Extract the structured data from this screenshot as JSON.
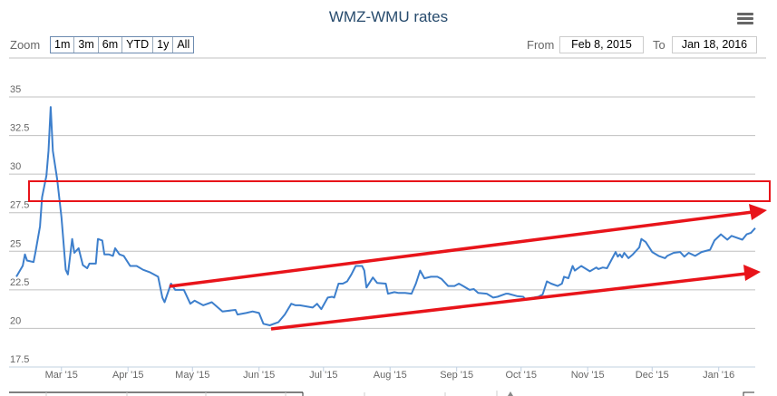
{
  "header": {
    "title": "WMZ-WMU rates",
    "menu_icon": "hamburger-menu-icon"
  },
  "range_selector": {
    "zoom_label": "Zoom",
    "buttons": [
      "1m",
      "3m",
      "6m",
      "YTD",
      "1y",
      "All"
    ],
    "from_label": "From",
    "from_value": "Feb 8, 2015",
    "to_label": "To",
    "to_value": "Jan 18, 2016"
  },
  "colors": {
    "line": "#3d7fcc",
    "annotation": "#e8141a",
    "grid": "#c0c0c0"
  },
  "chart_data": {
    "type": "line",
    "title": "WMZ-WMU rates",
    "start_date": "Feb 8, 2015",
    "x_ticks": [
      {
        "label": "Mar '15",
        "day": 21
      },
      {
        "label": "Apr '15",
        "day": 52
      },
      {
        "label": "May '15",
        "day": 82
      },
      {
        "label": "Jun '15",
        "day": 113
      },
      {
        "label": "Jul '15",
        "day": 143
      },
      {
        "label": "Aug '15",
        "day": 174
      },
      {
        "label": "Sep '15",
        "day": 205
      },
      {
        "label": "Oct '15",
        "day": 235
      },
      {
        "label": "Nov '15",
        "day": 266
      },
      {
        "label": "Dec '15",
        "day": 296
      },
      {
        "label": "Jan '16",
        "day": 327
      }
    ],
    "y_ticks": [
      "17.5",
      "20",
      "22.5",
      "25",
      "27.5",
      "30",
      "32.5",
      "35"
    ],
    "ylim": [
      17.5,
      35
    ],
    "xlim": [
      0,
      344
    ],
    "grid": true,
    "series": [
      {
        "name": "WMZ-WMU",
        "points": [
          [
            0,
            23.35
          ],
          [
            3,
            24.06
          ],
          [
            4,
            24.8
          ],
          [
            5,
            24.4
          ],
          [
            8,
            24.3
          ],
          [
            9,
            25.0
          ],
          [
            11,
            26.6
          ],
          [
            12,
            28.5
          ],
          [
            14,
            29.9
          ],
          [
            15,
            31.5
          ],
          [
            16,
            34.35
          ],
          [
            17,
            31.5
          ],
          [
            19,
            29.7
          ],
          [
            21,
            27.2
          ],
          [
            23,
            23.8
          ],
          [
            24,
            23.5
          ],
          [
            26,
            25.8
          ],
          [
            27,
            24.9
          ],
          [
            29,
            25.2
          ],
          [
            31,
            24.1
          ],
          [
            33,
            23.9
          ],
          [
            34,
            24.2
          ],
          [
            37,
            24.2
          ],
          [
            38,
            25.8
          ],
          [
            40,
            25.7
          ],
          [
            41,
            24.8
          ],
          [
            43,
            24.8
          ],
          [
            45,
            24.7
          ],
          [
            46,
            25.2
          ],
          [
            48,
            24.8
          ],
          [
            50,
            24.7
          ],
          [
            53,
            24.05
          ],
          [
            56,
            24.05
          ],
          [
            59,
            23.8
          ],
          [
            62,
            23.65
          ],
          [
            64,
            23.5
          ],
          [
            66,
            23.35
          ],
          [
            68,
            22.0
          ],
          [
            69,
            21.7
          ],
          [
            72,
            22.9
          ],
          [
            74,
            22.5
          ],
          [
            78,
            22.5
          ],
          [
            81,
            21.6
          ],
          [
            83,
            21.8
          ],
          [
            87,
            21.5
          ],
          [
            91,
            21.7
          ],
          [
            96,
            21.1
          ],
          [
            102,
            21.2
          ],
          [
            103,
            20.9
          ],
          [
            107,
            21.0
          ],
          [
            110,
            21.1
          ],
          [
            113,
            21.0
          ],
          [
            115,
            20.3
          ],
          [
            118,
            20.2
          ],
          [
            122,
            20.4
          ],
          [
            125,
            20.9
          ],
          [
            128,
            21.6
          ],
          [
            130,
            21.5
          ],
          [
            132,
            21.5
          ],
          [
            138,
            21.35
          ],
          [
            140,
            21.6
          ],
          [
            142,
            21.25
          ],
          [
            145,
            22.0
          ],
          [
            147,
            22.05
          ],
          [
            148,
            22.0
          ],
          [
            150,
            22.9
          ],
          [
            152,
            22.9
          ],
          [
            154,
            23.05
          ],
          [
            156,
            23.5
          ],
          [
            158,
            24.05
          ],
          [
            161,
            24.05
          ],
          [
            162,
            23.75
          ],
          [
            163,
            22.65
          ],
          [
            166,
            23.3
          ],
          [
            168,
            22.95
          ],
          [
            172,
            22.9
          ],
          [
            173,
            22.25
          ],
          [
            176,
            22.35
          ],
          [
            178,
            22.3
          ],
          [
            181,
            22.3
          ],
          [
            184,
            22.25
          ],
          [
            186,
            22.9
          ],
          [
            188,
            23.75
          ],
          [
            190,
            23.25
          ],
          [
            193,
            23.35
          ],
          [
            196,
            23.35
          ],
          [
            198,
            23.2
          ],
          [
            201,
            22.75
          ],
          [
            204,
            22.75
          ],
          [
            206,
            22.9
          ],
          [
            208,
            22.75
          ],
          [
            211,
            22.5
          ],
          [
            213,
            22.55
          ],
          [
            215,
            22.3
          ],
          [
            219,
            22.25
          ],
          [
            222,
            22.0
          ],
          [
            224,
            22.05
          ],
          [
            228,
            22.25
          ],
          [
            229,
            22.25
          ],
          [
            233,
            22.1
          ],
          [
            236,
            22.05
          ],
          [
            237,
            21.9
          ],
          [
            243,
            22.05
          ],
          [
            245,
            22.2
          ],
          [
            247,
            23.05
          ],
          [
            249,
            22.9
          ],
          [
            252,
            22.75
          ],
          [
            254,
            22.9
          ],
          [
            255,
            23.35
          ],
          [
            257,
            23.25
          ],
          [
            259,
            24.05
          ],
          [
            260,
            23.75
          ],
          [
            263,
            24.05
          ],
          [
            267,
            23.7
          ],
          [
            270,
            23.95
          ],
          [
            271,
            23.85
          ],
          [
            273,
            23.95
          ],
          [
            275,
            23.9
          ],
          [
            279,
            24.95
          ],
          [
            280,
            24.65
          ],
          [
            281,
            24.8
          ],
          [
            282,
            24.6
          ],
          [
            283,
            24.9
          ],
          [
            285,
            24.55
          ],
          [
            287,
            24.8
          ],
          [
            290,
            25.25
          ],
          [
            291,
            25.8
          ],
          [
            293,
            25.6
          ],
          [
            296,
            24.95
          ],
          [
            299,
            24.7
          ],
          [
            302,
            24.55
          ],
          [
            303,
            24.7
          ],
          [
            306,
            24.9
          ],
          [
            309,
            24.95
          ],
          [
            311,
            24.65
          ],
          [
            313,
            24.9
          ],
          [
            316,
            24.7
          ],
          [
            319,
            24.95
          ],
          [
            323,
            25.1
          ],
          [
            325,
            25.7
          ],
          [
            328,
            26.1
          ],
          [
            331,
            25.75
          ],
          [
            333,
            26.0
          ],
          [
            338,
            25.75
          ],
          [
            340,
            26.1
          ],
          [
            342,
            26.2
          ],
          [
            344,
            26.5
          ]
        ]
      }
    ]
  }
}
